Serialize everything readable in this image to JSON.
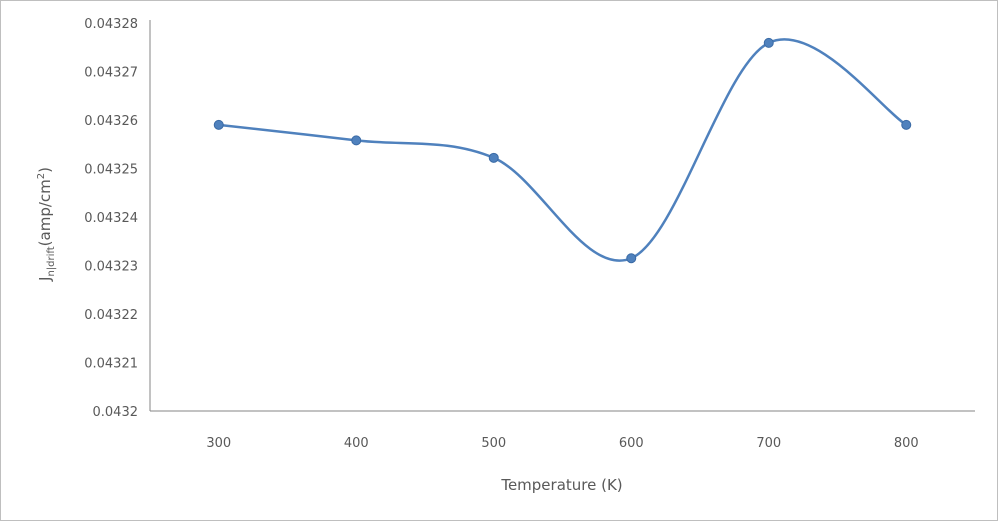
{
  "chart_data": {
    "type": "line",
    "xlabel": "Temperature (K)",
    "ylabel": {
      "main": "J",
      "subscript": "n|drift",
      "unit": "(amp/cm",
      "superscript": "2",
      "close": ")"
    },
    "x": [
      300,
      400,
      500,
      600,
      700,
      800
    ],
    "series": [
      {
        "values": [
          0.043259,
          0.0432558,
          0.0432522,
          0.0432315,
          0.0432759,
          0.043259
        ]
      }
    ],
    "ylim": [
      0.0432,
      0.04328
    ],
    "y_ticks": [
      "0.0432",
      "0.04321",
      "0.04322",
      "0.04323",
      "0.04324",
      "0.04325",
      "0.04326",
      "0.04327",
      "0.04328"
    ],
    "x_ticks": [
      "300",
      "400",
      "500",
      "600",
      "700",
      "800"
    ],
    "smooth": true,
    "grid": false,
    "legend": "none",
    "colors": {
      "line": "#4f81bd",
      "marker": "#4f81bd",
      "axis": "#868686",
      "text": "#595959"
    }
  }
}
